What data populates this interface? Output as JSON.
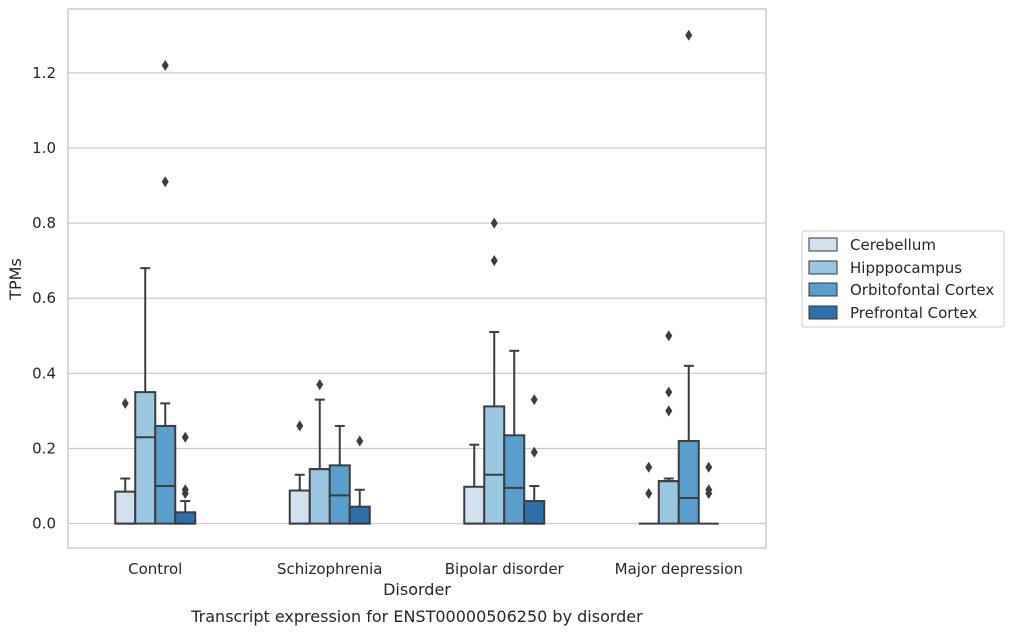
{
  "chart_data": {
    "type": "box",
    "title": "",
    "caption": "Transcript expression for ENST00000506250 by disorder",
    "xlabel": "Disorder",
    "ylabel": "TPMs",
    "ylim": [
      -0.065,
      1.37
    ],
    "yticks": [
      0.0,
      0.2,
      0.4,
      0.6,
      0.8,
      1.0,
      1.2
    ],
    "ytick_labels": [
      "0.0",
      "0.2",
      "0.4",
      "0.6",
      "0.8",
      "1.0",
      "1.2"
    ],
    "grid": "horizontal",
    "legend_position": "right",
    "categories": [
      "Control",
      "Schizophrenia",
      "Bipolar disorder",
      "Major depression"
    ],
    "series": [
      {
        "name": "Cerebellum",
        "color": "#d1e1f0",
        "boxes": [
          {
            "q1": 0.0,
            "median": 0.0,
            "q3": 0.085,
            "whisker_low": 0.0,
            "whisker_high": 0.12,
            "outliers": [
              0.32
            ]
          },
          {
            "q1": 0.0,
            "median": 0.0,
            "q3": 0.088,
            "whisker_low": 0.0,
            "whisker_high": 0.13,
            "outliers": [
              0.26
            ]
          },
          {
            "q1": 0.0,
            "median": 0.0,
            "q3": 0.098,
            "whisker_low": 0.0,
            "whisker_high": 0.21,
            "outliers": []
          },
          {
            "q1": 0.0,
            "median": 0.0,
            "q3": 0.0,
            "whisker_low": 0.0,
            "whisker_high": 0.0,
            "outliers": [
              0.08,
              0.15
            ]
          }
        ]
      },
      {
        "name": "Hipppocampus",
        "color": "#9ac8e0",
        "boxes": [
          {
            "q1": 0.0,
            "median": 0.23,
            "q3": 0.35,
            "whisker_low": 0.0,
            "whisker_high": 0.68,
            "outliers": []
          },
          {
            "q1": 0.0,
            "median": 0.145,
            "q3": 0.145,
            "whisker_low": 0.0,
            "whisker_high": 0.33,
            "outliers": [
              0.37
            ]
          },
          {
            "q1": 0.0,
            "median": 0.13,
            "q3": 0.312,
            "whisker_low": 0.0,
            "whisker_high": 0.51,
            "outliers": [
              0.7,
              0.8
            ]
          },
          {
            "q1": 0.0,
            "median": 0.113,
            "q3": 0.113,
            "whisker_low": 0.0,
            "whisker_high": 0.12,
            "outliers": [
              0.3,
              0.35,
              0.5
            ]
          }
        ]
      },
      {
        "name": "Orbitofontal Cortex",
        "color": "#5a9ecd",
        "boxes": [
          {
            "q1": 0.0,
            "median": 0.1,
            "q3": 0.26,
            "whisker_low": 0.0,
            "whisker_high": 0.32,
            "outliers": [
              0.91,
              1.22
            ]
          },
          {
            "q1": 0.0,
            "median": 0.075,
            "q3": 0.155,
            "whisker_low": 0.0,
            "whisker_high": 0.26,
            "outliers": []
          },
          {
            "q1": 0.0,
            "median": 0.095,
            "q3": 0.235,
            "whisker_low": 0.0,
            "whisker_high": 0.46,
            "outliers": []
          },
          {
            "q1": 0.0,
            "median": 0.068,
            "q3": 0.22,
            "whisker_low": 0.0,
            "whisker_high": 0.42,
            "outliers": [
              1.3
            ]
          }
        ]
      },
      {
        "name": "Prefrontal Cortex",
        "color": "#2b6fad",
        "boxes": [
          {
            "q1": 0.0,
            "median": 0.0,
            "q3": 0.03,
            "whisker_low": 0.0,
            "whisker_high": 0.06,
            "outliers": [
              0.08,
              0.09,
              0.23
            ]
          },
          {
            "q1": 0.0,
            "median": 0.0,
            "q3": 0.045,
            "whisker_low": 0.0,
            "whisker_high": 0.09,
            "outliers": [
              0.22
            ]
          },
          {
            "q1": 0.0,
            "median": 0.0,
            "q3": 0.06,
            "whisker_low": 0.0,
            "whisker_high": 0.1,
            "outliers": [
              0.19,
              0.33
            ]
          },
          {
            "q1": 0.0,
            "median": 0.0,
            "q3": 0.0,
            "whisker_low": 0.0,
            "whisker_high": 0.0,
            "outliers": [
              0.08,
              0.09,
              0.15
            ]
          }
        ]
      }
    ]
  }
}
